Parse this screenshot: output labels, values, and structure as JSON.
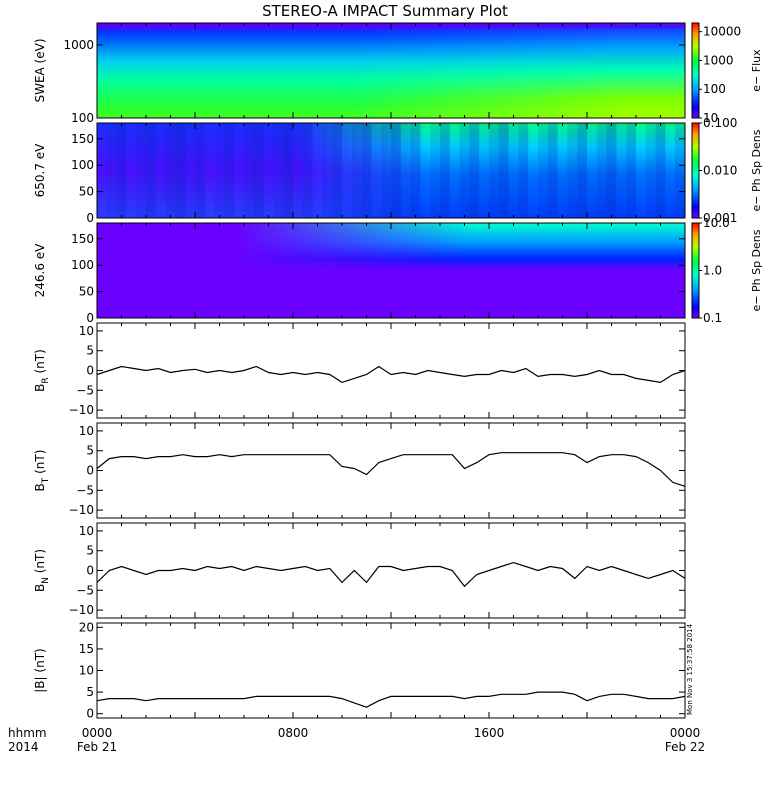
{
  "title": "STEREO-A IMPACT Summary Plot",
  "colors": {
    "axes": "#000000",
    "trace": "#000000",
    "background": "#ffffff"
  },
  "time_axis": {
    "corner_labels": [
      "hhmm",
      "2014"
    ],
    "ticks": [
      {
        "hours": 0,
        "line1": "0000",
        "line2": "Feb 21"
      },
      {
        "hours": 8,
        "line1": "0800",
        "line2": ""
      },
      {
        "hours": 16,
        "line1": "1600",
        "line2": ""
      },
      {
        "hours": 24,
        "line1": "0000",
        "line2": "Feb 22"
      }
    ],
    "range_hours": [
      0,
      24
    ]
  },
  "timestamp_stamp": "Mon Nov  3 15:37:58 2014",
  "chart_data": [
    {
      "type": "heatmap",
      "panel": "swea",
      "ylabel": "SWEA (eV)",
      "yscale": "log",
      "ylim": [
        100,
        2000
      ],
      "yticks": [
        {
          "v": 100,
          "label": "100"
        },
        {
          "v": 1000,
          "label": "1000"
        }
      ],
      "colorbar": {
        "label": "e− Flux",
        "scale": "log",
        "range": [
          10,
          20000
        ],
        "ticks": [
          "10",
          "100",
          "1000",
          "10000"
        ]
      }
    },
    {
      "type": "heatmap",
      "panel": "pad-650",
      "ylabel": "650.7 eV",
      "ylim": [
        0,
        180
      ],
      "yticks": [
        {
          "v": 0,
          "label": "0"
        },
        {
          "v": 50,
          "label": "50"
        },
        {
          "v": 100,
          "label": "100"
        },
        {
          "v": 150,
          "label": "150"
        }
      ],
      "colorbar": {
        "label": "e− Ph Sp Dens",
        "scale": "log",
        "range": [
          0.001,
          0.1
        ],
        "ticks": [
          "0.001",
          "0.010",
          "0.100"
        ]
      }
    },
    {
      "type": "heatmap",
      "panel": "pad-246",
      "ylabel": "246.6 eV",
      "ylim": [
        0,
        180
      ],
      "yticks": [
        {
          "v": 0,
          "label": "0"
        },
        {
          "v": 50,
          "label": "50"
        },
        {
          "v": 100,
          "label": "100"
        },
        {
          "v": 150,
          "label": "150"
        }
      ],
      "colorbar": {
        "label": "e− Ph Sp Dens",
        "scale": "log",
        "range": [
          0.1,
          10
        ],
        "ticks": [
          "0.1",
          "1.0",
          "10.0"
        ]
      }
    },
    {
      "type": "line",
      "panel": "br",
      "ylabel_main": "B",
      "ylabel_sub": "R",
      "ylabel_unit": " (nT)",
      "ylim": [
        -12,
        12
      ],
      "yticks": [
        {
          "v": -10,
          "label": "−10"
        },
        {
          "v": -5,
          "label": "−5"
        },
        {
          "v": 0,
          "label": "0"
        },
        {
          "v": 5,
          "label": "5"
        },
        {
          "v": 10,
          "label": "10"
        }
      ],
      "x": [
        0,
        0.5,
        1,
        1.5,
        2,
        2.5,
        3,
        3.5,
        4,
        4.5,
        5,
        5.5,
        6,
        6.5,
        7,
        7.5,
        8,
        8.5,
        9,
        9.5,
        10,
        10.5,
        11,
        11.5,
        12,
        12.5,
        13,
        13.5,
        14,
        14.5,
        15,
        15.5,
        16,
        16.5,
        17,
        17.5,
        18,
        18.5,
        19,
        19.5,
        20,
        20.5,
        21,
        21.5,
        22,
        22.5,
        23,
        23.5,
        24
      ],
      "y": [
        -1,
        0,
        1,
        0.5,
        0,
        0.5,
        -0.5,
        0,
        0.3,
        -0.5,
        0,
        -0.5,
        0,
        1,
        -0.5,
        -1,
        -0.5,
        -1,
        -0.5,
        -1,
        -3,
        -2,
        -1,
        1,
        -1,
        -0.5,
        -1,
        0,
        -0.5,
        -1,
        -1.5,
        -1,
        -1,
        0,
        -0.5,
        0.5,
        -1.5,
        -1,
        -1,
        -1.5,
        -1,
        0,
        -1,
        -1,
        -2,
        -2.5,
        -3,
        -1,
        0
      ]
    },
    {
      "type": "line",
      "panel": "bt",
      "ylabel_main": "B",
      "ylabel_sub": "T",
      "ylabel_unit": " (nT)",
      "ylim": [
        -12,
        12
      ],
      "yticks": [
        {
          "v": -10,
          "label": "−10"
        },
        {
          "v": -5,
          "label": "−5"
        },
        {
          "v": 0,
          "label": "0"
        },
        {
          "v": 5,
          "label": "5"
        },
        {
          "v": 10,
          "label": "10"
        }
      ],
      "x": [
        0,
        0.5,
        1,
        1.5,
        2,
        2.5,
        3,
        3.5,
        4,
        4.5,
        5,
        5.5,
        6,
        6.5,
        7,
        7.5,
        8,
        8.5,
        9,
        9.5,
        10,
        10.5,
        11,
        11.5,
        12,
        12.5,
        13,
        13.5,
        14,
        14.5,
        15,
        15.5,
        16,
        16.5,
        17,
        17.5,
        18,
        18.5,
        19,
        19.5,
        20,
        20.5,
        21,
        21.5,
        22,
        22.5,
        23,
        23.5,
        24
      ],
      "y": [
        0.5,
        3,
        3.5,
        3.5,
        3,
        3.5,
        3.5,
        4,
        3.5,
        3.5,
        4,
        3.5,
        4,
        4,
        4,
        4,
        4,
        4,
        4,
        4,
        1,
        0.5,
        -1,
        2,
        3,
        4,
        4,
        4,
        4,
        4,
        0.5,
        2,
        4,
        4.5,
        4.5,
        4.5,
        4.5,
        4.5,
        4.5,
        4,
        2,
        3.5,
        4,
        4,
        3.5,
        2,
        0,
        -3,
        -4
      ]
    },
    {
      "type": "line",
      "panel": "bn",
      "ylabel_main": "B",
      "ylabel_sub": "N",
      "ylabel_unit": " (nT)",
      "ylim": [
        -12,
        12
      ],
      "yticks": [
        {
          "v": -10,
          "label": "−10"
        },
        {
          "v": -5,
          "label": "−5"
        },
        {
          "v": 0,
          "label": "0"
        },
        {
          "v": 5,
          "label": "5"
        },
        {
          "v": 10,
          "label": "10"
        }
      ],
      "x": [
        0,
        0.5,
        1,
        1.5,
        2,
        2.5,
        3,
        3.5,
        4,
        4.5,
        5,
        5.5,
        6,
        6.5,
        7,
        7.5,
        8,
        8.5,
        9,
        9.5,
        10,
        10.5,
        11,
        11.5,
        12,
        12.5,
        13,
        13.5,
        14,
        14.5,
        15,
        15.5,
        16,
        16.5,
        17,
        17.5,
        18,
        18.5,
        19,
        19.5,
        20,
        20.5,
        21,
        21.5,
        22,
        22.5,
        23,
        23.5,
        24
      ],
      "y": [
        -3,
        0,
        1,
        0,
        -1,
        0,
        0,
        0.5,
        0,
        1,
        0.5,
        1,
        0,
        1,
        0.5,
        0,
        0.5,
        1,
        0,
        0.5,
        -3,
        0,
        -3,
        1,
        1,
        0,
        0.5,
        1,
        1,
        0,
        -4,
        -1,
        0,
        1,
        2,
        1,
        0,
        1,
        0.5,
        -2,
        1,
        0,
        1,
        0,
        -1,
        -2,
        -1,
        0,
        -2
      ]
    },
    {
      "type": "line",
      "panel": "bmag",
      "ylabel_main": "|B|",
      "ylabel_sub": "",
      "ylabel_unit": " (nT)",
      "ylim": [
        -1,
        21
      ],
      "yticks": [
        {
          "v": 0,
          "label": "0"
        },
        {
          "v": 5,
          "label": "5"
        },
        {
          "v": 10,
          "label": "10"
        },
        {
          "v": 15,
          "label": "15"
        },
        {
          "v": 20,
          "label": "20"
        }
      ],
      "x": [
        0,
        0.5,
        1,
        1.5,
        2,
        2.5,
        3,
        3.5,
        4,
        4.5,
        5,
        5.5,
        6,
        6.5,
        7,
        7.5,
        8,
        8.5,
        9,
        9.5,
        10,
        10.5,
        11,
        11.5,
        12,
        12.5,
        13,
        13.5,
        14,
        14.5,
        15,
        15.5,
        16,
        16.5,
        17,
        17.5,
        18,
        18.5,
        19,
        19.5,
        20,
        20.5,
        21,
        21.5,
        22,
        22.5,
        23,
        23.5,
        24
      ],
      "y": [
        3,
        3.5,
        3.5,
        3.5,
        3,
        3.5,
        3.5,
        3.5,
        3.5,
        3.5,
        3.5,
        3.5,
        3.5,
        4,
        4,
        4,
        4,
        4,
        4,
        4,
        3.5,
        2.5,
        1.5,
        3,
        4,
        4,
        4,
        4,
        4,
        4,
        3.5,
        4,
        4,
        4.5,
        4.5,
        4.5,
        5,
        5,
        5,
        4.5,
        3,
        4,
        4.5,
        4.5,
        4,
        3.5,
        3.5,
        3.5,
        4
      ]
    }
  ]
}
